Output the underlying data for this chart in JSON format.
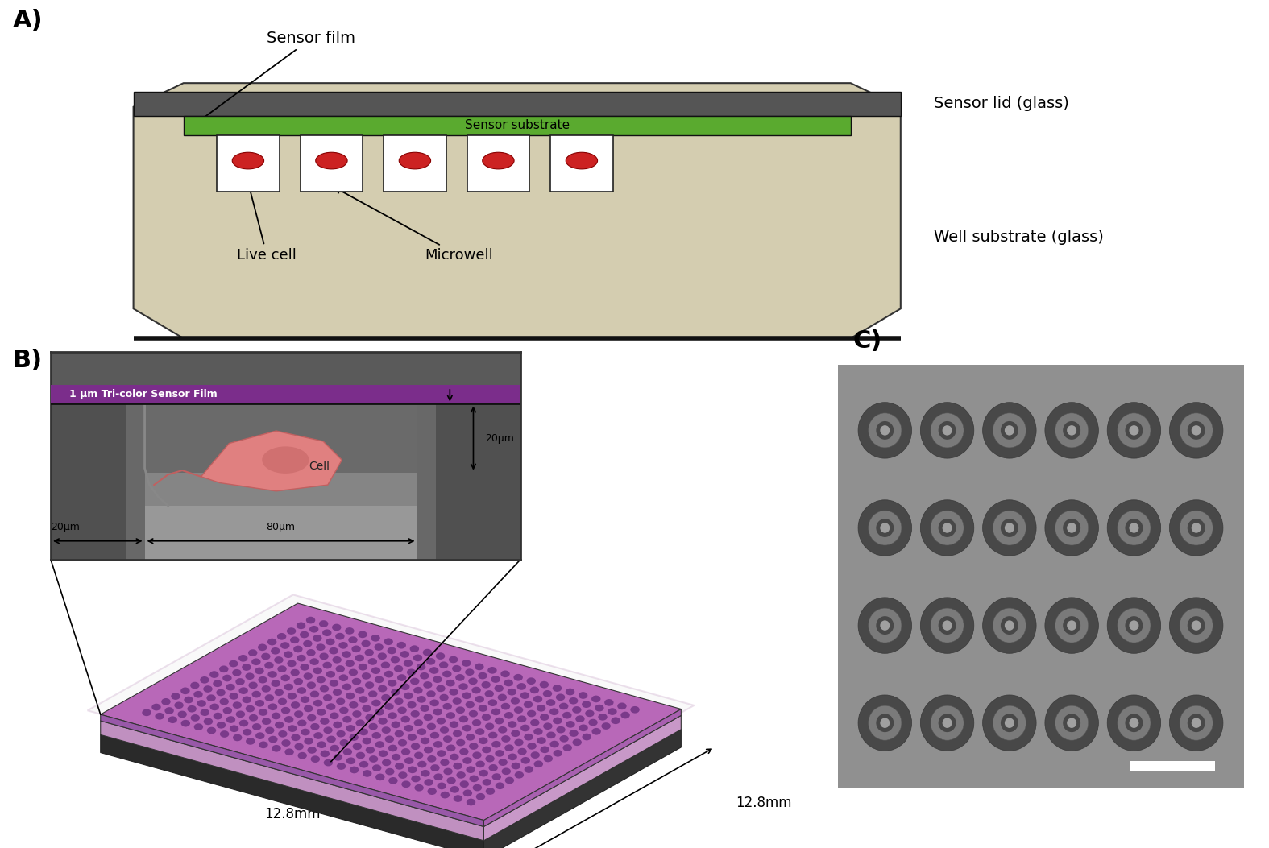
{
  "panel_A": {
    "label": "A)",
    "substrate_color": "#d4cdb0",
    "substrate_border": "#333333",
    "green_film_color": "#5aaa2f",
    "green_film_dark": "#3a7010",
    "microwell_color": "#ffffff",
    "microwell_border": "#222222",
    "cell_color": "#cc2222",
    "annotations": {
      "sensor_film": "Sensor film",
      "sensor_substrate": "Sensor substrate",
      "sensor_lid": "Sensor lid (glass)",
      "live_cell": "Live cell",
      "microwell": "Microwell",
      "well_substrate": "Well substrate (glass)"
    },
    "n_microwells": 5
  },
  "panel_B": {
    "label": "B)",
    "inset_bg": "#6a6a6a",
    "inset_border": "#333333",
    "purple_film": "#7b2d8b",
    "chip_top_color": "#d4a8d4",
    "chip_body_color": "#b87abf",
    "chip_dark_color": "#8a5a9a",
    "chip_shadow": "#333333",
    "chip_light": "#e8c8e8",
    "chip_border": "#ccaacc",
    "dim_label_12_8mm_bottom": "12.8mm",
    "dim_label_12_8mm_right": "12.8mm",
    "inset_label_film": "1 μm Tri-color Sensor Film",
    "inset_label_cell": "Cell",
    "inset_label_20um_v": "20μm",
    "inset_label_20um_h": "20μm",
    "inset_label_80um": "80μm",
    "dot_color": "#6a3a7a",
    "chip_top_surface": "#c070c0",
    "chip_border_light": "#e0b8e0",
    "chip_base_dark": "#383838",
    "chip_side_left": "#aaaacc",
    "chip_side_right": "#ccaacc"
  },
  "panel_C": {
    "label": "C)",
    "bg_color": "#909090",
    "ring_bg": "#858585",
    "ring_outer_color": "#484848",
    "ring_mid_color": "#7a7a7a",
    "ring_inner_color": "#a0a0a0",
    "scale_bar_color": "#ffffff",
    "n_cols": 6,
    "n_rows": 4
  },
  "bg_color": "#ffffff",
  "font_label": 20,
  "font_annotation": 13
}
